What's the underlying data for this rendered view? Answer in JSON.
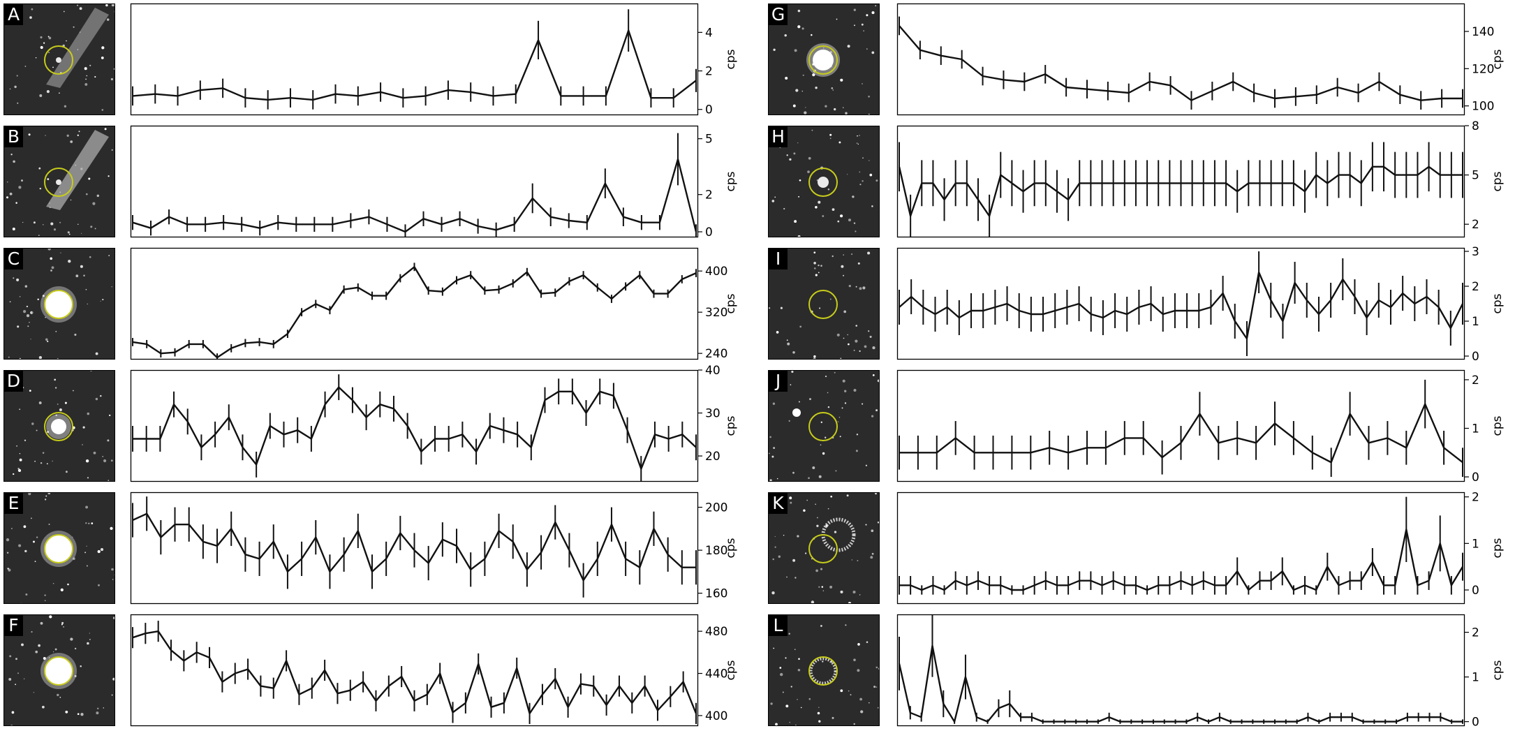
{
  "chart_data": [
    {
      "panel": "A",
      "type": "line",
      "ylabel": "cps",
      "yticks": [
        0,
        2,
        4
      ],
      "ylim": [
        -0.3,
        5.5
      ],
      "values": [
        0.7,
        0.8,
        0.7,
        1.0,
        1.1,
        0.6,
        0.5,
        0.6,
        0.5,
        0.8,
        0.7,
        0.9,
        0.6,
        0.7,
        1.0,
        0.9,
        0.7,
        0.8,
        3.6,
        0.7,
        0.7,
        0.7,
        4.1,
        0.6,
        0.6,
        1.5
      ],
      "errors": [
        0.5,
        0.5,
        0.5,
        0.5,
        0.5,
        0.5,
        0.5,
        0.5,
        0.5,
        0.5,
        0.5,
        0.5,
        0.5,
        0.5,
        0.5,
        0.5,
        0.5,
        0.5,
        1.0,
        0.5,
        0.5,
        0.5,
        1.1,
        0.5,
        0.5,
        0.6
      ]
    },
    {
      "panel": "B",
      "type": "line",
      "ylabel": "cps",
      "yticks": [
        0,
        2,
        5
      ],
      "ylim": [
        -0.3,
        5.7
      ],
      "values": [
        0.5,
        0.2,
        0.8,
        0.4,
        0.4,
        0.5,
        0.4,
        0.2,
        0.5,
        0.4,
        0.4,
        0.4,
        0.6,
        0.8,
        0.4,
        0.0,
        0.7,
        0.4,
        0.7,
        0.3,
        0.1,
        0.4,
        1.8,
        0.8,
        0.6,
        0.5,
        2.6,
        0.8,
        0.5,
        0.5,
        3.9,
        0.0
      ],
      "errors": [
        0.4,
        0.4,
        0.4,
        0.4,
        0.4,
        0.4,
        0.4,
        0.4,
        0.4,
        0.4,
        0.4,
        0.4,
        0.4,
        0.4,
        0.4,
        0.4,
        0.4,
        0.4,
        0.4,
        0.4,
        0.4,
        0.4,
        0.8,
        0.5,
        0.4,
        0.4,
        0.8,
        0.5,
        0.4,
        0.4,
        1.4,
        0.4
      ]
    },
    {
      "panel": "C",
      "type": "line",
      "ylabel": "cps",
      "yticks": [
        240,
        320,
        400
      ],
      "ylim": [
        228,
        445
      ],
      "values": [
        262,
        258,
        240,
        242,
        258,
        258,
        232,
        250,
        260,
        262,
        258,
        278,
        320,
        336,
        324,
        364,
        368,
        352,
        352,
        386,
        408,
        362,
        360,
        382,
        392,
        362,
        364,
        376,
        398,
        356,
        358,
        380,
        392,
        368,
        346,
        370,
        392,
        356,
        356,
        384,
        396
      ],
      "errors": [
        8,
        8,
        8,
        8,
        8,
        8,
        8,
        8,
        8,
        8,
        8,
        8,
        8,
        8,
        8,
        8,
        8,
        8,
        8,
        8,
        8,
        8,
        8,
        8,
        8,
        8,
        8,
        8,
        8,
        8,
        8,
        8,
        8,
        8,
        8,
        8,
        8,
        8,
        8,
        8,
        8
      ]
    },
    {
      "panel": "D",
      "type": "line",
      "ylabel": "cps",
      "yticks": [
        20,
        30,
        40
      ],
      "ylim": [
        14,
        40
      ],
      "values": [
        24,
        24,
        24,
        32,
        28,
        22,
        25,
        29,
        22,
        18,
        27,
        25,
        26,
        24,
        32,
        36,
        33,
        29,
        32,
        31,
        27,
        21,
        24,
        24,
        25,
        21,
        27,
        26,
        25,
        22,
        33,
        35,
        35,
        30,
        35,
        34,
        26,
        17,
        25,
        24,
        25,
        22
      ],
      "errors": [
        3,
        3,
        3,
        3,
        3,
        3,
        3,
        3,
        3,
        3,
        3,
        3,
        3,
        3,
        3,
        3,
        3,
        3,
        3,
        3,
        3,
        3,
        3,
        3,
        3,
        3,
        3,
        3,
        3,
        3,
        3,
        3,
        3,
        3,
        3,
        3,
        3,
        3,
        3,
        3,
        3,
        3
      ]
    },
    {
      "panel": "E",
      "type": "line",
      "ylabel": "cps",
      "yticks": [
        160,
        180,
        200
      ],
      "ylim": [
        155,
        207
      ],
      "values": [
        194,
        197,
        186,
        192,
        192,
        184,
        182,
        190,
        178,
        176,
        184,
        170,
        176,
        186,
        170,
        178,
        189,
        170,
        176,
        188,
        180,
        174,
        185,
        182,
        171,
        176,
        189,
        184,
        171,
        179,
        193,
        180,
        166,
        176,
        192,
        176,
        172,
        190,
        178,
        172,
        172
      ],
      "errors": [
        8,
        8,
        8,
        8,
        8,
        8,
        8,
        8,
        8,
        8,
        8,
        8,
        8,
        8,
        8,
        8,
        8,
        8,
        8,
        8,
        8,
        8,
        8,
        8,
        8,
        8,
        8,
        8,
        8,
        8,
        8,
        8,
        8,
        8,
        8,
        8,
        8,
        8,
        8,
        8,
        8
      ]
    },
    {
      "panel": "F",
      "type": "line",
      "ylabel": "cps",
      "yticks": [
        400,
        440,
        480
      ],
      "ylim": [
        390,
        496
      ],
      "values": [
        474,
        478,
        480,
        462,
        452,
        460,
        455,
        432,
        440,
        444,
        428,
        426,
        452,
        420,
        426,
        443,
        421,
        424,
        432,
        414,
        428,
        437,
        414,
        420,
        440,
        403,
        412,
        449,
        408,
        412,
        445,
        402,
        420,
        435,
        408,
        430,
        428,
        410,
        428,
        412,
        428,
        405,
        418,
        432,
        402
      ],
      "errors": [
        10,
        10,
        10,
        10,
        10,
        10,
        10,
        10,
        10,
        10,
        10,
        10,
        10,
        10,
        10,
        10,
        10,
        10,
        10,
        10,
        10,
        10,
        10,
        10,
        10,
        10,
        10,
        10,
        10,
        10,
        10,
        10,
        10,
        10,
        10,
        10,
        10,
        10,
        10,
        10,
        10,
        10,
        10,
        10,
        10
      ]
    },
    {
      "panel": "G",
      "type": "line",
      "ylabel": "cps",
      "yticks": [
        100,
        120,
        140
      ],
      "ylim": [
        95,
        155
      ],
      "values": [
        143,
        130,
        127,
        125,
        116,
        114,
        113,
        117,
        110,
        109,
        108,
        107,
        113,
        111,
        103,
        108,
        113,
        107,
        104,
        105,
        106,
        110,
        107,
        113,
        106,
        103,
        104,
        104
      ],
      "errors": [
        5,
        5,
        5,
        5,
        5,
        5,
        5,
        5,
        5,
        5,
        5,
        5,
        5,
        5,
        5,
        5,
        5,
        5,
        5,
        5,
        5,
        5,
        5,
        5,
        5,
        5,
        5,
        5
      ]
    },
    {
      "panel": "H",
      "type": "line",
      "ylabel": "cps",
      "yticks": [
        2,
        5,
        8
      ],
      "ylim": [
        1.2,
        8
      ],
      "values": [
        5.5,
        2.5,
        4.5,
        4.5,
        3.5,
        4.5,
        4.5,
        3.5,
        2.5,
        5.0,
        4.5,
        4.0,
        4.5,
        4.5,
        4.0,
        3.5,
        4.5,
        4.5,
        4.5,
        4.5,
        4.5,
        4.5,
        4.5,
        4.5,
        4.5,
        4.5,
        4.5,
        4.5,
        4.5,
        4.5,
        4.0,
        4.5,
        4.5,
        4.5,
        4.5,
        4.5,
        4.0,
        5.0,
        4.5,
        5.0,
        5.0,
        4.5,
        5.5,
        5.5,
        5.0,
        5.0,
        5.0,
        5.5,
        5.0,
        5.0,
        5.0
      ],
      "errors": [
        1.5,
        1.3,
        1.4,
        1.4,
        1.3,
        1.4,
        1.4,
        1.3,
        1.3,
        1.4,
        1.4,
        1.3,
        1.4,
        1.4,
        1.3,
        1.3,
        1.4,
        1.4,
        1.4,
        1.4,
        1.4,
        1.4,
        1.4,
        1.4,
        1.4,
        1.4,
        1.4,
        1.4,
        1.4,
        1.4,
        1.3,
        1.4,
        1.4,
        1.4,
        1.4,
        1.4,
        1.3,
        1.4,
        1.4,
        1.4,
        1.4,
        1.4,
        1.5,
        1.5,
        1.4,
        1.4,
        1.4,
        1.5,
        1.4,
        1.4,
        1.4
      ]
    },
    {
      "panel": "I",
      "type": "line",
      "ylabel": "cps",
      "yticks": [
        0,
        1,
        2,
        3
      ],
      "ylim": [
        -0.1,
        3.1
      ],
      "values": [
        1.4,
        1.7,
        1.4,
        1.2,
        1.4,
        1.1,
        1.3,
        1.3,
        1.4,
        1.5,
        1.3,
        1.2,
        1.2,
        1.3,
        1.4,
        1.5,
        1.2,
        1.1,
        1.3,
        1.2,
        1.4,
        1.5,
        1.2,
        1.3,
        1.3,
        1.3,
        1.4,
        1.8,
        1.0,
        0.5,
        2.4,
        1.6,
        1.0,
        2.1,
        1.6,
        1.2,
        1.6,
        2.2,
        1.7,
        1.1,
        1.6,
        1.4,
        1.8,
        1.5,
        1.7,
        1.4,
        0.8,
        1.5
      ],
      "errors": [
        0.5,
        0.5,
        0.5,
        0.5,
        0.5,
        0.5,
        0.5,
        0.5,
        0.5,
        0.5,
        0.5,
        0.5,
        0.5,
        0.5,
        0.5,
        0.5,
        0.5,
        0.5,
        0.5,
        0.5,
        0.5,
        0.5,
        0.5,
        0.5,
        0.5,
        0.5,
        0.5,
        0.5,
        0.5,
        0.5,
        0.6,
        0.5,
        0.5,
        0.6,
        0.5,
        0.5,
        0.5,
        0.6,
        0.5,
        0.5,
        0.5,
        0.5,
        0.5,
        0.5,
        0.5,
        0.5,
        0.5,
        0.6
      ]
    },
    {
      "panel": "J",
      "type": "line",
      "ylabel": "cps",
      "yticks": [
        0,
        1,
        2
      ],
      "ylim": [
        -0.1,
        2.2
      ],
      "values": [
        0.5,
        0.5,
        0.5,
        0.8,
        0.5,
        0.5,
        0.5,
        0.5,
        0.6,
        0.5,
        0.6,
        0.6,
        0.8,
        0.8,
        0.4,
        0.7,
        1.3,
        0.7,
        0.8,
        0.7,
        1.1,
        0.8,
        0.5,
        0.3,
        1.3,
        0.7,
        0.8,
        0.6,
        1.5,
        0.6,
        0.3
      ],
      "errors": [
        0.35,
        0.35,
        0.35,
        0.35,
        0.35,
        0.35,
        0.35,
        0.35,
        0.35,
        0.35,
        0.35,
        0.35,
        0.35,
        0.35,
        0.35,
        0.35,
        0.45,
        0.35,
        0.35,
        0.35,
        0.45,
        0.35,
        0.35,
        0.3,
        0.45,
        0.35,
        0.35,
        0.35,
        0.5,
        0.35,
        0.3
      ]
    },
    {
      "panel": "K",
      "type": "line",
      "ylabel": "cps",
      "yticks": [
        0,
        1,
        2
      ],
      "ylim": [
        -0.3,
        2.1
      ],
      "values": [
        0.1,
        0.1,
        0.0,
        0.1,
        0.0,
        0.2,
        0.1,
        0.2,
        0.1,
        0.1,
        0.0,
        0.0,
        0.1,
        0.2,
        0.1,
        0.1,
        0.2,
        0.2,
        0.1,
        0.2,
        0.1,
        0.1,
        0.0,
        0.1,
        0.1,
        0.2,
        0.1,
        0.2,
        0.1,
        0.1,
        0.4,
        0.0,
        0.2,
        0.2,
        0.4,
        0.0,
        0.1,
        0.0,
        0.5,
        0.1,
        0.2,
        0.2,
        0.6,
        0.1,
        0.1,
        1.3,
        0.1,
        0.2,
        1.0,
        0.1,
        0.5
      ],
      "errors": [
        0.2,
        0.2,
        0.1,
        0.2,
        0.1,
        0.2,
        0.2,
        0.2,
        0.2,
        0.2,
        0.1,
        0.1,
        0.2,
        0.2,
        0.2,
        0.2,
        0.2,
        0.2,
        0.2,
        0.2,
        0.2,
        0.2,
        0.1,
        0.2,
        0.2,
        0.2,
        0.2,
        0.2,
        0.2,
        0.2,
        0.3,
        0.1,
        0.2,
        0.2,
        0.3,
        0.1,
        0.2,
        0.1,
        0.3,
        0.2,
        0.2,
        0.2,
        0.3,
        0.2,
        0.2,
        0.7,
        0.2,
        0.2,
        0.6,
        0.2,
        0.3
      ]
    },
    {
      "panel": "L",
      "type": "line",
      "ylabel": "cps",
      "yticks": [
        0,
        1,
        2
      ],
      "ylim": [
        -0.1,
        2.4
      ],
      "values": [
        1.3,
        0.2,
        0.1,
        1.7,
        0.4,
        0.0,
        1.0,
        0.1,
        0.0,
        0.3,
        0.4,
        0.1,
        0.1,
        0.0,
        0.0,
        0.0,
        0.0,
        0.0,
        0.0,
        0.1,
        0.0,
        0.0,
        0.0,
        0.0,
        0.0,
        0.0,
        0.0,
        0.1,
        0.0,
        0.1,
        0.0,
        0.0,
        0.0,
        0.0,
        0.0,
        0.0,
        0.0,
        0.1,
        0.0,
        0.1,
        0.1,
        0.1,
        0.0,
        0.0,
        0.0,
        0.0,
        0.1,
        0.1,
        0.1,
        0.1,
        0.0,
        0.0
      ],
      "errors": [
        0.6,
        0.15,
        0.1,
        0.7,
        0.3,
        0.05,
        0.5,
        0.1,
        0.05,
        0.2,
        0.3,
        0.1,
        0.1,
        0.05,
        0.05,
        0.05,
        0.05,
        0.05,
        0.05,
        0.1,
        0.05,
        0.05,
        0.05,
        0.05,
        0.05,
        0.05,
        0.05,
        0.1,
        0.05,
        0.1,
        0.05,
        0.05,
        0.05,
        0.05,
        0.05,
        0.05,
        0.05,
        0.1,
        0.05,
        0.1,
        0.1,
        0.1,
        0.05,
        0.05,
        0.05,
        0.05,
        0.1,
        0.1,
        0.1,
        0.1,
        0.05,
        0.05
      ]
    }
  ]
}
